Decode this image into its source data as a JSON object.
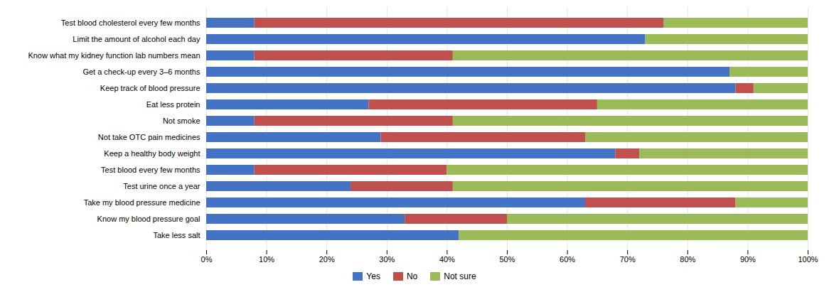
{
  "chart_data": {
    "type": "bar",
    "orientation": "horizontal",
    "stacked": true,
    "categories": [
      "Take less salt",
      "Know my blood pressure goal",
      "Take my blood pressure medicine",
      "Test urine once a year",
      "Test blood every few months",
      "Keep a healthy body weight",
      "Not take OTC pain medicines",
      "Not smoke",
      "Eat less protein",
      "Keep track of blood pressure",
      "Get a check-up every 3–6 months",
      "Know what my kidney function lab numbers mean",
      "Limit the amount of alcohol each day",
      "Test blood cholesterol every few months"
    ],
    "series": [
      {
        "name": "Yes",
        "color": "#4472C4",
        "values": [
          42,
          33,
          63,
          24,
          8,
          68,
          29,
          8,
          27,
          88,
          87,
          8,
          73,
          8
        ]
      },
      {
        "name": "No",
        "color": "#C0504D",
        "values": [
          0,
          17,
          25,
          17,
          32,
          4,
          34,
          33,
          38,
          3,
          0,
          33,
          0,
          68
        ]
      },
      {
        "name": "Not sure",
        "color": "#9BBB59",
        "values": [
          58,
          50,
          12,
          59,
          60,
          28,
          37,
          59,
          35,
          9,
          13,
          59,
          27,
          24
        ]
      }
    ],
    "xlim": [
      0,
      100
    ],
    "xticks": [
      {
        "value": 0,
        "label": "0%"
      },
      {
        "value": 10,
        "label": "10%"
      },
      {
        "value": 20,
        "label": "20%"
      },
      {
        "value": 30,
        "label": "30%"
      },
      {
        "value": 40,
        "label": "40%"
      },
      {
        "value": 50,
        "label": "50%"
      },
      {
        "value": 60,
        "label": "60%"
      },
      {
        "value": 70,
        "label": "70%"
      },
      {
        "value": 80,
        "label": "80%"
      },
      {
        "value": 90,
        "label": "90%"
      },
      {
        "value": 100,
        "label": "100%"
      }
    ],
    "grid": true,
    "legend": "bottom"
  }
}
